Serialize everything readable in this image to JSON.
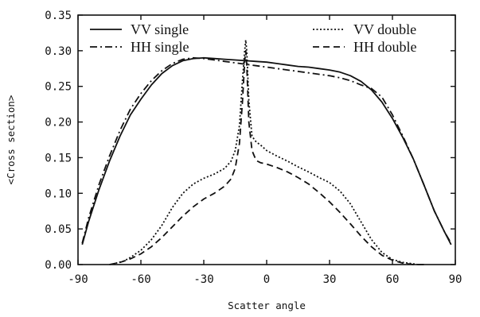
{
  "chart_data": {
    "type": "line",
    "title": "",
    "xlabel": "Scatter angle",
    "ylabel": "<Cross section>",
    "xlim": [
      -90,
      90
    ],
    "ylim": [
      0.0,
      0.35
    ],
    "xticks": [
      "-90",
      "-60",
      "-30",
      "0",
      "30",
      "60",
      "90"
    ],
    "yticks": [
      "0.00",
      "0.05",
      "0.10",
      "0.15",
      "0.20",
      "0.25",
      "0.30",
      "0.35"
    ],
    "grid": false,
    "legend_position": "top",
    "series": [
      {
        "name": "VV single",
        "style": "solid",
        "x": [
          -88,
          -85,
          -80,
          -75,
          -70,
          -65,
          -60,
          -55,
          -50,
          -45,
          -40,
          -35,
          -30,
          -25,
          -20,
          -15,
          -10,
          -5,
          0,
          5,
          10,
          15,
          20,
          25,
          30,
          35,
          40,
          45,
          50,
          55,
          60,
          65,
          70,
          75,
          80,
          85,
          88
        ],
        "y": [
          0.028,
          0.06,
          0.105,
          0.145,
          0.18,
          0.21,
          0.232,
          0.252,
          0.268,
          0.279,
          0.286,
          0.289,
          0.29,
          0.289,
          0.288,
          0.287,
          0.286,
          0.285,
          0.284,
          0.282,
          0.28,
          0.278,
          0.277,
          0.275,
          0.273,
          0.27,
          0.265,
          0.257,
          0.245,
          0.228,
          0.205,
          0.178,
          0.148,
          0.112,
          0.075,
          0.045,
          0.028
        ]
      },
      {
        "name": "HH single",
        "style": "dash-dot",
        "x": [
          -88,
          -85,
          -80,
          -75,
          -70,
          -65,
          -60,
          -55,
          -50,
          -45,
          -40,
          -35,
          -30,
          -25,
          -20,
          -15,
          -10,
          -5,
          0,
          5,
          10,
          15,
          20,
          25,
          30,
          35,
          40,
          45,
          50,
          55,
          60,
          65,
          70,
          75,
          80,
          85,
          88
        ],
        "y": [
          0.03,
          0.065,
          0.112,
          0.152,
          0.188,
          0.218,
          0.24,
          0.258,
          0.272,
          0.282,
          0.288,
          0.29,
          0.289,
          0.287,
          0.285,
          0.283,
          0.281,
          0.279,
          0.277,
          0.275,
          0.273,
          0.271,
          0.269,
          0.267,
          0.265,
          0.262,
          0.258,
          0.252,
          0.247,
          0.235,
          0.21,
          0.18,
          0.148,
          0.112,
          0.075,
          0.045,
          0.03
        ]
      },
      {
        "name": "VV double",
        "style": "dotted",
        "x": [
          -72,
          -68,
          -65,
          -60,
          -55,
          -50,
          -45,
          -40,
          -35,
          -30,
          -25,
          -20,
          -17,
          -15,
          -13,
          -11.5,
          -10.5,
          -10,
          -9.5,
          -8.5,
          -7,
          -5,
          -3,
          0,
          5,
          10,
          15,
          20,
          25,
          30,
          35,
          40,
          45,
          50,
          55,
          60,
          65,
          70,
          72
        ],
        "y": [
          0.002,
          0.005,
          0.01,
          0.02,
          0.035,
          0.055,
          0.08,
          0.1,
          0.113,
          0.121,
          0.127,
          0.135,
          0.145,
          0.16,
          0.195,
          0.26,
          0.3,
          0.315,
          0.3,
          0.23,
          0.18,
          0.172,
          0.168,
          0.16,
          0.152,
          0.145,
          0.137,
          0.13,
          0.122,
          0.115,
          0.103,
          0.085,
          0.06,
          0.035,
          0.017,
          0.007,
          0.003,
          0.001,
          0.0
        ]
      },
      {
        "name": "HH double",
        "style": "dashed",
        "x": [
          -75,
          -70,
          -65,
          -60,
          -55,
          -50,
          -45,
          -40,
          -35,
          -30,
          -25,
          -20,
          -17,
          -15,
          -13,
          -11.5,
          -10.5,
          -10,
          -9.5,
          -8.5,
          -7,
          -5,
          -3,
          0,
          5,
          10,
          15,
          20,
          25,
          30,
          35,
          40,
          45,
          50,
          55,
          60,
          65,
          70,
          75
        ],
        "y": [
          0.0,
          0.003,
          0.008,
          0.015,
          0.025,
          0.038,
          0.053,
          0.068,
          0.081,
          0.092,
          0.1,
          0.11,
          0.12,
          0.135,
          0.17,
          0.23,
          0.285,
          0.3,
          0.28,
          0.2,
          0.16,
          0.146,
          0.143,
          0.141,
          0.136,
          0.13,
          0.122,
          0.113,
          0.101,
          0.088,
          0.073,
          0.057,
          0.04,
          0.025,
          0.013,
          0.006,
          0.002,
          0.0,
          0.0
        ]
      }
    ]
  }
}
